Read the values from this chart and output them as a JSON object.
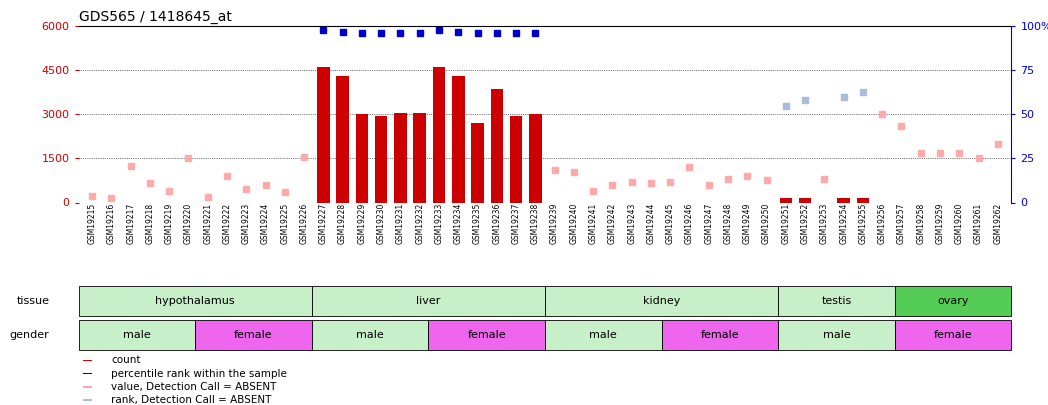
{
  "title": "GDS565 / 1418645_at",
  "samples": [
    "GSM19215",
    "GSM19216",
    "GSM19217",
    "GSM19218",
    "GSM19219",
    "GSM19220",
    "GSM19221",
    "GSM19222",
    "GSM19223",
    "GSM19224",
    "GSM19225",
    "GSM19226",
    "GSM19227",
    "GSM19228",
    "GSM19229",
    "GSM19230",
    "GSM19231",
    "GSM19232",
    "GSM19233",
    "GSM19234",
    "GSM19235",
    "GSM19236",
    "GSM19237",
    "GSM19238",
    "GSM19239",
    "GSM19240",
    "GSM19241",
    "GSM19242",
    "GSM19243",
    "GSM19244",
    "GSM19245",
    "GSM19246",
    "GSM19247",
    "GSM19248",
    "GSM19249",
    "GSM19250",
    "GSM19251",
    "GSM19252",
    "GSM19253",
    "GSM19254",
    "GSM19255",
    "GSM19256",
    "GSM19257",
    "GSM19258",
    "GSM19259",
    "GSM19260",
    "GSM19261",
    "GSM19262"
  ],
  "bar_values": [
    0,
    0,
    0,
    0,
    0,
    0,
    0,
    0,
    0,
    0,
    0,
    0,
    4600,
    4300,
    3000,
    2950,
    3050,
    3050,
    4600,
    4300,
    2700,
    3850,
    2950,
    3000,
    0,
    0,
    0,
    0,
    0,
    0,
    0,
    0,
    0,
    0,
    0,
    0,
    150,
    150,
    0,
    150,
    150,
    0,
    0,
    0,
    0,
    0,
    0,
    0
  ],
  "percentile_present": [
    null,
    null,
    null,
    null,
    null,
    null,
    null,
    null,
    null,
    null,
    null,
    null,
    98,
    97,
    96,
    96,
    96,
    96,
    98,
    97,
    96,
    96,
    96,
    96,
    null,
    null,
    null,
    null,
    null,
    null,
    null,
    null,
    null,
    null,
    null,
    null,
    null,
    null,
    null,
    null,
    null,
    null,
    null,
    null,
    null,
    null,
    null,
    null
  ],
  "absent_value": [
    220,
    150,
    1250,
    650,
    400,
    1500,
    200,
    900,
    450,
    600,
    350,
    1550,
    null,
    null,
    null,
    null,
    null,
    null,
    null,
    null,
    null,
    null,
    null,
    null,
    1100,
    1050,
    400,
    600,
    700,
    650,
    700,
    1200,
    600,
    800,
    900,
    750,
    null,
    null,
    800,
    null,
    null,
    3000,
    2600,
    1700,
    1700,
    1700,
    1500,
    2000
  ],
  "absent_rank": [
    null,
    null,
    null,
    null,
    null,
    null,
    null,
    null,
    null,
    null,
    null,
    null,
    null,
    null,
    null,
    null,
    null,
    null,
    null,
    null,
    null,
    null,
    null,
    null,
    null,
    null,
    null,
    null,
    null,
    null,
    null,
    null,
    null,
    null,
    null,
    null,
    55,
    58,
    null,
    60,
    63,
    null,
    null,
    null,
    null,
    null,
    null,
    null
  ],
  "tissue_groups": [
    {
      "label": "hypothalamus",
      "start": 0,
      "end": 12,
      "color": "#c8f0c8"
    },
    {
      "label": "liver",
      "start": 12,
      "end": 24,
      "color": "#c8f0c8"
    },
    {
      "label": "kidney",
      "start": 24,
      "end": 36,
      "color": "#c8f0c8"
    },
    {
      "label": "testis",
      "start": 36,
      "end": 42,
      "color": "#c8f0c8"
    },
    {
      "label": "ovary",
      "start": 42,
      "end": 48,
      "color": "#55cc55"
    }
  ],
  "gender_groups": [
    {
      "label": "male",
      "start": 0,
      "end": 6,
      "color": "#c8f0c8"
    },
    {
      "label": "female",
      "start": 6,
      "end": 12,
      "color": "#ee66ee"
    },
    {
      "label": "male",
      "start": 12,
      "end": 18,
      "color": "#c8f0c8"
    },
    {
      "label": "female",
      "start": 18,
      "end": 24,
      "color": "#ee66ee"
    },
    {
      "label": "male",
      "start": 24,
      "end": 30,
      "color": "#c8f0c8"
    },
    {
      "label": "female",
      "start": 30,
      "end": 36,
      "color": "#ee66ee"
    },
    {
      "label": "male",
      "start": 36,
      "end": 42,
      "color": "#c8f0c8"
    },
    {
      "label": "female",
      "start": 42,
      "end": 48,
      "color": "#ee66ee"
    }
  ],
  "ylim_left": [
    0,
    6000
  ],
  "ylim_right": [
    0,
    100
  ],
  "yticks_left": [
    0,
    1500,
    3000,
    4500,
    6000
  ],
  "yticks_right": [
    0,
    25,
    50,
    75,
    100
  ],
  "bar_color": "#cc0000",
  "blue_marker_color": "#0000cc",
  "absent_val_color": "#ffaaaa",
  "absent_rank_color": "#aabbdd",
  "left_axis_color": "#cc0000",
  "right_axis_color": "#0000cc"
}
